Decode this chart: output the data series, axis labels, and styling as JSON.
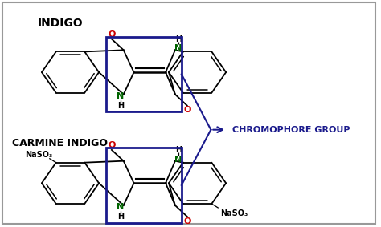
{
  "bg_color": "#ffffff",
  "border_color": "#999999",
  "chromophore_color": "#1a1a8c",
  "label_color_N": "#006400",
  "label_color_O": "#cc0000",
  "label_color_black": "#000000",
  "box_color": "#1a1a8c",
  "title_indigo": "INDIGO",
  "title_carmine": "CARMINE INDIGO",
  "chromophore_label": "CHROMOPHORE GROUP",
  "NaSO3_label": "NaSO₃"
}
